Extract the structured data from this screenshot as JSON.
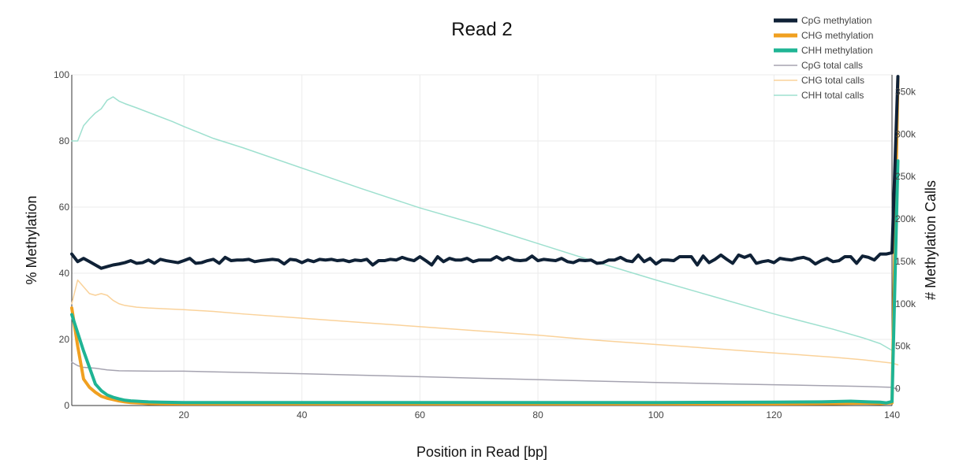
{
  "chart_data": {
    "type": "line",
    "title": "Read 2",
    "xlabel": "Position in Read [bp]",
    "ylabel": "% Methylation",
    "y2label": "# Methylation Calls",
    "xlim": [
      1,
      140
    ],
    "ylim": [
      0,
      100
    ],
    "y2lim": [
      -20000,
      370000
    ],
    "x_ticks": [
      20,
      40,
      60,
      80,
      100,
      120,
      140
    ],
    "y_ticks": [
      0,
      20,
      40,
      60,
      80,
      100
    ],
    "y2_ticks": [
      0,
      50000,
      100000,
      150000,
      200000,
      250000,
      300000,
      350000
    ],
    "y2_tick_labels": [
      "0",
      "50k",
      "100k",
      "150k",
      "200k",
      "250k",
      "300k",
      "350k"
    ],
    "grid": true,
    "legend_position": "top-right",
    "series": [
      {
        "name": "CpG methylation",
        "axis": "y",
        "color": "#0f2136",
        "width": 4,
        "points": [
          [
            1,
            45.8
          ],
          [
            2,
            43.5
          ],
          [
            3,
            44.5
          ],
          [
            4,
            43.5
          ],
          [
            5,
            42.5
          ],
          [
            6,
            41.5
          ],
          [
            7,
            42
          ],
          [
            8,
            42.5
          ],
          [
            9,
            42.8
          ],
          [
            10,
            43.2
          ],
          [
            11,
            43.8
          ],
          [
            12,
            43
          ],
          [
            13,
            43.2
          ],
          [
            14,
            44
          ],
          [
            15,
            43
          ],
          [
            16,
            44.2
          ],
          [
            17,
            43.8
          ],
          [
            18,
            43.5
          ],
          [
            19,
            43.2
          ],
          [
            20,
            43.8
          ],
          [
            21,
            44.5
          ],
          [
            22,
            43
          ],
          [
            23,
            43.2
          ],
          [
            24,
            43.8
          ],
          [
            25,
            44.2
          ],
          [
            26,
            43
          ],
          [
            27,
            44.8
          ],
          [
            28,
            43.8
          ],
          [
            29,
            44
          ],
          [
            30,
            44
          ],
          [
            31,
            44.2
          ],
          [
            32,
            43.5
          ],
          [
            33,
            43.8
          ],
          [
            34,
            44
          ],
          [
            35,
            44.2
          ],
          [
            36,
            44
          ],
          [
            37,
            42.8
          ],
          [
            38,
            44.2
          ],
          [
            39,
            44
          ],
          [
            40,
            43.2
          ],
          [
            41,
            44
          ],
          [
            42,
            43.5
          ],
          [
            43,
            44.2
          ],
          [
            44,
            44
          ],
          [
            45,
            44.2
          ],
          [
            46,
            43.8
          ],
          [
            47,
            44
          ],
          [
            48,
            43.5
          ],
          [
            49,
            44
          ],
          [
            50,
            43.8
          ],
          [
            51,
            44.2
          ],
          [
            52,
            42.5
          ],
          [
            53,
            43.8
          ],
          [
            54,
            43.8
          ],
          [
            55,
            44.2
          ],
          [
            56,
            44
          ],
          [
            57,
            44.8
          ],
          [
            58,
            44.2
          ],
          [
            59,
            43.8
          ],
          [
            60,
            45
          ],
          [
            61,
            43.8
          ],
          [
            62,
            42.5
          ],
          [
            63,
            45
          ],
          [
            64,
            43.5
          ],
          [
            65,
            44.5
          ],
          [
            66,
            44
          ],
          [
            67,
            44
          ],
          [
            68,
            44.5
          ],
          [
            69,
            43.5
          ],
          [
            70,
            44
          ],
          [
            71,
            44
          ],
          [
            72,
            44
          ],
          [
            73,
            45
          ],
          [
            74,
            44
          ],
          [
            75,
            44.8
          ],
          [
            76,
            44
          ],
          [
            77,
            43.8
          ],
          [
            78,
            44
          ],
          [
            79,
            45.2
          ],
          [
            80,
            43.8
          ],
          [
            81,
            44.2
          ],
          [
            82,
            44
          ],
          [
            83,
            43.8
          ],
          [
            84,
            44.5
          ],
          [
            85,
            43.5
          ],
          [
            86,
            43.2
          ],
          [
            87,
            44
          ],
          [
            88,
            43.8
          ],
          [
            89,
            44
          ],
          [
            90,
            43
          ],
          [
            91,
            43.2
          ],
          [
            92,
            44
          ],
          [
            93,
            44
          ],
          [
            94,
            44.8
          ],
          [
            95,
            43.8
          ],
          [
            96,
            43.5
          ],
          [
            97,
            45.5
          ],
          [
            98,
            43.5
          ],
          [
            99,
            44.5
          ],
          [
            100,
            42.8
          ],
          [
            101,
            44
          ],
          [
            102,
            44
          ],
          [
            103,
            43.8
          ],
          [
            104,
            45
          ],
          [
            105,
            45
          ],
          [
            106,
            45
          ],
          [
            107,
            42.5
          ],
          [
            108,
            45.2
          ],
          [
            109,
            43.2
          ],
          [
            110,
            44.2
          ],
          [
            111,
            45.5
          ],
          [
            112,
            44.2
          ],
          [
            113,
            43
          ],
          [
            114,
            45.5
          ],
          [
            115,
            44.8
          ],
          [
            116,
            45.5
          ],
          [
            117,
            43
          ],
          [
            118,
            43.5
          ],
          [
            119,
            43.8
          ],
          [
            120,
            43.2
          ],
          [
            121,
            44.5
          ],
          [
            122,
            44.2
          ],
          [
            123,
            44
          ],
          [
            124,
            44.5
          ],
          [
            125,
            44.8
          ],
          [
            126,
            44.2
          ],
          [
            127,
            42.8
          ],
          [
            128,
            43.8
          ],
          [
            129,
            44.5
          ],
          [
            130,
            43.5
          ],
          [
            131,
            43.8
          ],
          [
            132,
            45
          ],
          [
            133,
            45
          ],
          [
            134,
            43
          ],
          [
            135,
            45.2
          ],
          [
            136,
            44.8
          ],
          [
            137,
            44
          ],
          [
            138,
            45.8
          ],
          [
            139,
            45.8
          ],
          [
            140,
            46.2
          ],
          [
            141,
            99.5
          ]
        ]
      },
      {
        "name": "CHG methylation",
        "axis": "y",
        "color": "#f0a020",
        "width": 4,
        "points": [
          [
            1,
            29.5
          ],
          [
            2,
            18
          ],
          [
            3,
            8
          ],
          [
            4,
            5.5
          ],
          [
            5,
            4
          ],
          [
            6,
            2.8
          ],
          [
            7,
            2.2
          ],
          [
            8,
            1.8
          ],
          [
            9,
            1.4
          ],
          [
            10,
            1.1
          ],
          [
            11,
            0.9
          ],
          [
            12,
            0.8
          ],
          [
            13,
            0.7
          ],
          [
            14,
            0.6
          ],
          [
            16,
            0.55
          ],
          [
            20,
            0.5
          ],
          [
            40,
            0.5
          ],
          [
            60,
            0.5
          ],
          [
            80,
            0.5
          ],
          [
            100,
            0.5
          ],
          [
            120,
            0.5
          ],
          [
            130,
            0.6
          ],
          [
            135,
            0.7
          ],
          [
            138,
            0.6
          ],
          [
            140,
            0.8
          ],
          [
            141,
            99
          ]
        ]
      },
      {
        "name": "CHH methylation",
        "axis": "y",
        "color": "#1fb494",
        "width": 4,
        "points": [
          [
            1,
            27.5
          ],
          [
            2,
            22
          ],
          [
            3,
            16.5
          ],
          [
            4,
            11.5
          ],
          [
            5,
            6.5
          ],
          [
            6,
            4.5
          ],
          [
            7,
            3.2
          ],
          [
            8,
            2.5
          ],
          [
            9,
            2
          ],
          [
            10,
            1.6
          ],
          [
            11,
            1.4
          ],
          [
            12,
            1.3
          ],
          [
            13,
            1.2
          ],
          [
            14,
            1.1
          ],
          [
            16,
            1
          ],
          [
            20,
            0.9
          ],
          [
            40,
            0.9
          ],
          [
            60,
            0.9
          ],
          [
            80,
            0.9
          ],
          [
            100,
            0.9
          ],
          [
            120,
            1.0
          ],
          [
            128,
            1.1
          ],
          [
            133,
            1.3
          ],
          [
            136,
            1.1
          ],
          [
            138,
            1.0
          ],
          [
            139,
            0.8
          ],
          [
            140,
            1.2
          ],
          [
            141,
            74
          ]
        ]
      },
      {
        "name": "CpG total calls",
        "axis": "y2",
        "color": "#a5a3b0",
        "width": 1.5,
        "points": [
          [
            1,
            31000
          ],
          [
            2,
            27000
          ],
          [
            3,
            25000
          ],
          [
            5,
            24000
          ],
          [
            7,
            22000
          ],
          [
            9,
            21000
          ],
          [
            15,
            20500
          ],
          [
            20,
            20500
          ],
          [
            25,
            19700
          ],
          [
            30,
            19000
          ],
          [
            40,
            17500
          ],
          [
            50,
            15800
          ],
          [
            60,
            14000
          ],
          [
            70,
            12200
          ],
          [
            80,
            10500
          ],
          [
            90,
            8800
          ],
          [
            100,
            7200
          ],
          [
            110,
            5800
          ],
          [
            120,
            4500
          ],
          [
            130,
            3200
          ],
          [
            135,
            2500
          ],
          [
            140,
            1500
          ],
          [
            141,
            -1000
          ]
        ]
      },
      {
        "name": "CHG total calls",
        "axis": "y2",
        "color": "#fad29a",
        "width": 1.5,
        "points": [
          [
            1,
            100000
          ],
          [
            2,
            128000
          ],
          [
            3,
            120000
          ],
          [
            4,
            112000
          ],
          [
            5,
            110000
          ],
          [
            6,
            112000
          ],
          [
            7,
            110000
          ],
          [
            8,
            104000
          ],
          [
            9,
            100000
          ],
          [
            10,
            98000
          ],
          [
            12,
            96000
          ],
          [
            14,
            95000
          ],
          [
            17,
            94000
          ],
          [
            20,
            93000
          ],
          [
            25,
            91000
          ],
          [
            30,
            88000
          ],
          [
            40,
            83000
          ],
          [
            50,
            78000
          ],
          [
            60,
            73000
          ],
          [
            70,
            68000
          ],
          [
            80,
            63000
          ],
          [
            90,
            57000
          ],
          [
            100,
            52000
          ],
          [
            110,
            47000
          ],
          [
            120,
            42000
          ],
          [
            130,
            37000
          ],
          [
            135,
            34000
          ],
          [
            140,
            30000
          ],
          [
            141,
            28000
          ]
        ]
      },
      {
        "name": "CHH total calls",
        "axis": "y2",
        "color": "#9ee0cf",
        "width": 1.5,
        "points": [
          [
            1,
            292000
          ],
          [
            2,
            292000
          ],
          [
            3,
            310000
          ],
          [
            4,
            318000
          ],
          [
            5,
            325000
          ],
          [
            6,
            330000
          ],
          [
            7,
            340000
          ],
          [
            8,
            344000
          ],
          [
            9,
            339000
          ],
          [
            10,
            336000
          ],
          [
            12,
            331000
          ],
          [
            15,
            323000
          ],
          [
            18,
            315000
          ],
          [
            20,
            309000
          ],
          [
            25,
            295000
          ],
          [
            30,
            284000
          ],
          [
            40,
            260000
          ],
          [
            50,
            236000
          ],
          [
            60,
            213000
          ],
          [
            70,
            193000
          ],
          [
            80,
            171000
          ],
          [
            90,
            149000
          ],
          [
            100,
            128000
          ],
          [
            110,
            108000
          ],
          [
            120,
            88000
          ],
          [
            130,
            70000
          ],
          [
            135,
            60000
          ],
          [
            138,
            53000
          ],
          [
            140,
            45000
          ]
        ]
      }
    ]
  }
}
